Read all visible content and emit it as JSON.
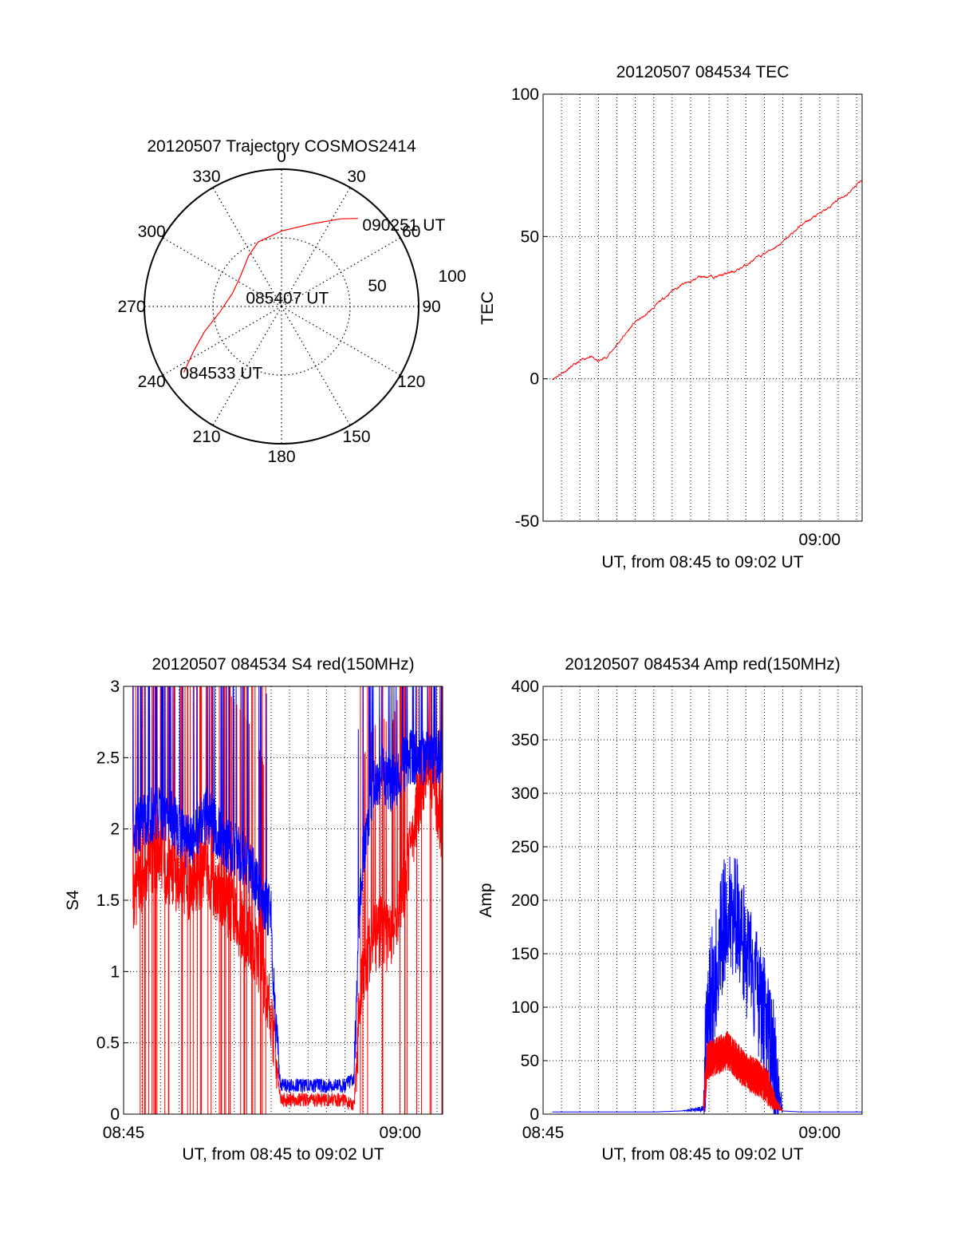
{
  "chart_data": [
    {
      "type": "polar",
      "title": "20120507 Trajectory COSMOS2414",
      "azimuth_labels": [
        "0",
        "30",
        "60",
        "90",
        "120",
        "150",
        "180",
        "210",
        "240",
        "270",
        "300",
        "330"
      ],
      "radius_labels": [
        "50",
        "100"
      ],
      "rlim": [
        0,
        100
      ],
      "trajectory": {
        "color": "#ff0000",
        "points": [
          {
            "az": 236,
            "r": 86
          },
          {
            "az": 243,
            "r": 72
          },
          {
            "az": 252,
            "r": 59
          },
          {
            "az": 265,
            "r": 45
          },
          {
            "az": 285,
            "r": 37
          },
          {
            "az": 305,
            "r": 37
          },
          {
            "az": 327,
            "r": 44
          },
          {
            "az": 340,
            "r": 50
          },
          {
            "az": 0,
            "r": 55
          },
          {
            "az": 20,
            "r": 64
          },
          {
            "az": 34,
            "r": 77
          },
          {
            "az": 41,
            "r": 85
          }
        ],
        "annotations": [
          {
            "text": "084533 UT",
            "az": 236,
            "r": 86
          },
          {
            "text": "085407 UT",
            "az": 286,
            "r": 24
          },
          {
            "text": "090251 UT",
            "az": 46,
            "r": 86
          }
        ]
      }
    },
    {
      "type": "line",
      "title": "20120507 084534 TEC",
      "xlabel": "UT, from 08:45 to 09:02 UT",
      "ylabel": "TEC",
      "xlim": [
        0,
        17.3
      ],
      "ylim": [
        -50,
        100
      ],
      "yticks": [
        "100",
        "50",
        "0",
        "-50"
      ],
      "xticks": [
        {
          "minute": 15,
          "label": "09:00"
        }
      ],
      "grid": true,
      "series": [
        {
          "color": "#ff0000",
          "noise": 0.6,
          "x": [
            0.5,
            1.0,
            1.5,
            2.0,
            2.5,
            3.0,
            3.5,
            4.0,
            4.5,
            5.0,
            5.5,
            6.0,
            6.5,
            7.0,
            7.5,
            8.0,
            8.5,
            9.0,
            9.5,
            10.0,
            10.5,
            11.0,
            11.5,
            12.0,
            12.5,
            13.0,
            13.5,
            14.0,
            14.5,
            15.0,
            15.5,
            16.0,
            16.5,
            17.3
          ],
          "y": [
            0,
            2,
            4,
            6,
            8,
            6,
            8,
            12,
            16,
            20,
            22,
            25,
            28,
            31,
            33,
            34,
            36,
            36,
            36,
            37,
            38,
            40,
            42,
            44,
            46,
            48,
            51,
            54,
            56,
            58,
            60,
            63,
            65,
            70
          ]
        }
      ]
    },
    {
      "type": "line",
      "title": "20120507 084534 S4 red(150MHz)",
      "xlabel": "UT, from 08:45 to 09:02 UT",
      "ylabel": "S4",
      "xlim": [
        0,
        17.3
      ],
      "ylim": [
        0,
        3
      ],
      "yticks": [
        "3",
        "2.5",
        "2",
        "1.5",
        "1",
        "0.5",
        "0"
      ],
      "xticks": [
        {
          "minute": 0,
          "label": "08:45"
        },
        {
          "minute": 15,
          "label": "09:00"
        }
      ],
      "grid": true,
      "series": [
        {
          "color": "#ff0000",
          "noise": 0.25,
          "spikes": true,
          "x": [
            0.5,
            1.5,
            2.5,
            3.5,
            4.5,
            5.5,
            6.5,
            7.0,
            7.5,
            8.0,
            8.2,
            8.5,
            9.0,
            10.0,
            11.0,
            12.0,
            12.5,
            12.8,
            13.0,
            13.5,
            14.0,
            14.5,
            15.0,
            15.5,
            16.0,
            16.5,
            17.3
          ],
          "y": [
            1.5,
            1.8,
            1.7,
            1.6,
            1.7,
            1.5,
            1.3,
            1.2,
            1.0,
            0.7,
            0.5,
            0.1,
            0.1,
            0.1,
            0.1,
            0.1,
            0.05,
            0.8,
            1.0,
            1.2,
            1.3,
            1.2,
            1.5,
            1.8,
            2.2,
            2.5,
            2.0
          ]
        },
        {
          "color": "#0000ff",
          "noise": 0.2,
          "spikes": false,
          "x": [
            0.5,
            1.5,
            2.5,
            3.5,
            4.5,
            5.5,
            6.5,
            7.0,
            7.5,
            8.0,
            8.2,
            8.5,
            9.0,
            10.0,
            11.0,
            12.0,
            12.5,
            12.8,
            13.0,
            13.5,
            14.0,
            14.5,
            15.0,
            15.5,
            16.0,
            16.5,
            17.3
          ],
          "y": [
            2.0,
            2.1,
            2.1,
            1.9,
            2.1,
            1.9,
            1.8,
            1.7,
            1.5,
            1.4,
            0.7,
            0.2,
            0.2,
            0.2,
            0.2,
            0.2,
            0.25,
            1.5,
            1.8,
            2.3,
            2.4,
            2.3,
            2.4,
            2.5,
            2.5,
            2.5,
            2.5
          ]
        }
      ]
    },
    {
      "type": "line",
      "title": "20120507 084534 Amp red(150MHz)",
      "xlabel": "UT, from 08:45 to 09:02 UT",
      "ylabel": "Amp",
      "xlim": [
        0,
        17.3
      ],
      "ylim": [
        0,
        400
      ],
      "yticks": [
        "400",
        "350",
        "300",
        "250",
        "200",
        "150",
        "100",
        "50",
        "0"
      ],
      "xticks": [
        {
          "minute": 0,
          "label": "08:45"
        },
        {
          "minute": 15,
          "label": "09:00"
        }
      ],
      "grid": true,
      "series": [
        {
          "color": "#0000ff",
          "noise": 60,
          "x": [
            0.5,
            2.0,
            4.0,
            6.0,
            7.5,
            8.7,
            8.9,
            9.5,
            10.0,
            10.5,
            11.0,
            11.5,
            12.0,
            12.3,
            12.6,
            13.0,
            14.0,
            16.0,
            17.3
          ],
          "y": [
            2,
            2,
            2,
            2,
            3,
            5,
            95,
            145,
            200,
            180,
            150,
            120,
            90,
            60,
            40,
            3,
            2,
            2,
            2
          ]
        },
        {
          "color": "#ff0000",
          "noise": 18,
          "x": [
            8.7,
            8.9,
            9.5,
            10.0,
            10.5,
            11.0,
            11.5,
            12.0,
            12.3,
            12.6,
            13.0
          ],
          "y": [
            5,
            50,
            55,
            60,
            50,
            40,
            35,
            30,
            20,
            10,
            3
          ]
        }
      ]
    }
  ]
}
